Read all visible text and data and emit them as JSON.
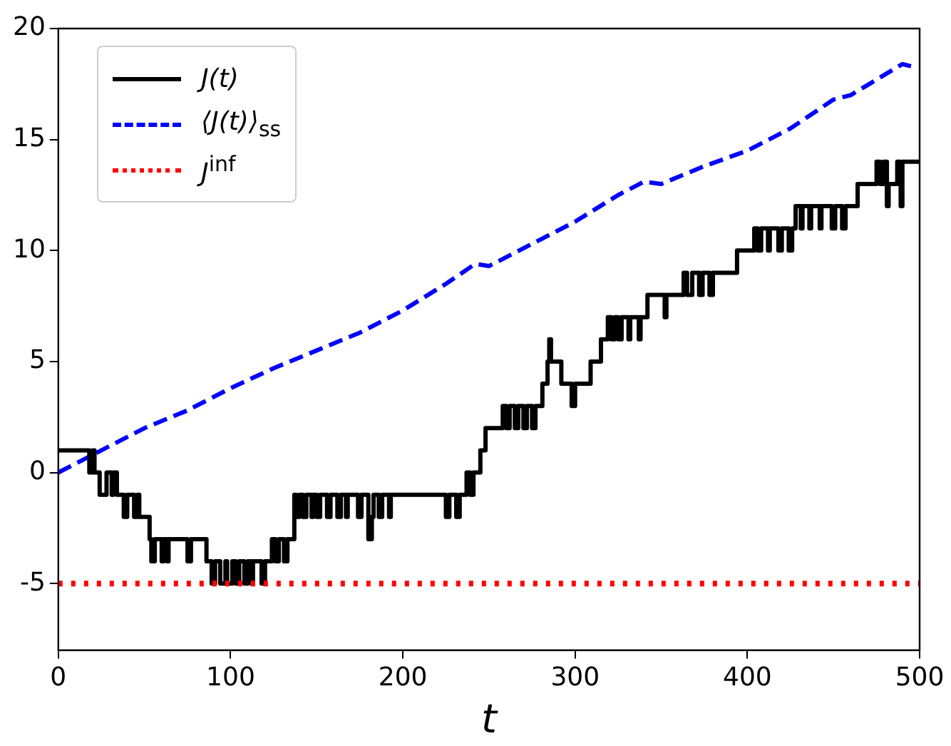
{
  "chart_data": {
    "type": "line",
    "xlabel": "t",
    "xlim": [
      0,
      500
    ],
    "xticks": [
      0,
      100,
      200,
      300,
      400,
      500
    ],
    "ylim": [
      -8,
      20
    ],
    "yticks": [
      -5,
      0,
      5,
      10,
      15,
      20
    ],
    "grid": false,
    "legend": "top left",
    "series": [
      {
        "type": "step",
        "name": "J(t)",
        "color": "#000000",
        "line_style": "solid",
        "x": [
          0,
          18,
          20,
          21,
          24,
          28,
          31,
          32,
          34,
          38,
          40,
          44,
          46,
          47,
          53,
          54,
          56,
          60,
          61,
          63,
          64,
          75,
          77,
          86,
          89,
          91,
          94,
          97,
          98,
          101,
          103,
          105,
          108,
          110,
          112,
          113,
          118,
          120,
          124,
          126,
          128,
          131,
          133,
          137,
          138,
          140,
          142,
          144,
          147,
          148,
          150,
          152,
          156,
          158,
          162,
          164,
          167,
          168,
          174,
          176,
          180,
          182,
          183,
          186,
          188,
          192,
          193,
          225,
          227,
          231,
          233,
          237,
          239,
          241,
          245,
          248,
          258,
          260,
          262,
          265,
          267,
          270,
          272,
          275,
          277,
          281,
          284,
          285,
          286,
          292,
          298,
          300,
          309,
          315,
          319,
          321,
          323,
          325,
          327,
          331,
          332,
          337,
          338,
          342,
          352,
          353,
          363,
          365,
          368,
          372,
          374,
          378,
          380,
          383,
          394,
          404,
          406,
          408,
          412,
          413,
          418,
          420,
          424,
          426,
          428,
          431,
          432,
          436,
          437,
          442,
          443,
          449,
          451,
          455,
          457,
          464,
          475,
          477,
          479,
          481,
          482,
          487,
          489,
          490,
          500
        ],
        "values": [
          1,
          0,
          1,
          0,
          -1,
          0,
          -1,
          0,
          -1,
          -2,
          -1,
          -2,
          -1,
          -2,
          -3,
          -4,
          -3,
          -4,
          -3,
          -4,
          -3,
          -4,
          -3,
          -4,
          -5,
          -4,
          -5,
          -4,
          -5,
          -4,
          -5,
          -4,
          -5,
          -4,
          -5,
          -4,
          -5,
          -4,
          -3,
          -4,
          -3,
          -4,
          -3,
          -1,
          -2,
          -1,
          -2,
          -1,
          -2,
          -1,
          -2,
          -1,
          -2,
          -1,
          -2,
          -1,
          -2,
          -1,
          -2,
          -1,
          -3,
          -2,
          -1,
          -2,
          -1,
          -2,
          -1,
          -2,
          -1,
          -2,
          -1,
          0,
          -1,
          0,
          1,
          2,
          3,
          2,
          3,
          2,
          3,
          2,
          3,
          2,
          3,
          4,
          5,
          6,
          5,
          4,
          3,
          4,
          5,
          6,
          7,
          6,
          7,
          6,
          7,
          6,
          7,
          6,
          7,
          8,
          7,
          8,
          9,
          8,
          9,
          8,
          9,
          8,
          9,
          9,
          10,
          11,
          10,
          11,
          10,
          11,
          10,
          11,
          10,
          11,
          12,
          11,
          12,
          11,
          12,
          11,
          12,
          11,
          12,
          11,
          12,
          13,
          14,
          13,
          14,
          12,
          13,
          14,
          12,
          14,
          14
        ]
      },
      {
        "type": "line",
        "name": "⟨J(t)⟩$_{ss}$",
        "color": "#0000ff",
        "line_style": "dashed",
        "x": [
          0,
          25,
          50,
          75,
          100,
          125,
          150,
          175,
          200,
          225,
          242,
          250,
          275,
          300,
          325,
          340,
          350,
          375,
          400,
          425,
          450,
          460,
          475,
          490,
          495
        ],
        "values": [
          0,
          1,
          2,
          2.8,
          3.8,
          4.7,
          5.5,
          6.3,
          7.3,
          8.5,
          9.4,
          9.3,
          10.3,
          11.3,
          12.5,
          13.1,
          13,
          13.8,
          14.5,
          15.5,
          16.8,
          17,
          17.7,
          18.4,
          18.3
        ]
      }
    ],
    "ref_lines": [
      {
        "axis": "y",
        "value": -5,
        "label": "J$^{inf}$",
        "color": "#ff0000",
        "line_style": "dotted"
      }
    ]
  }
}
